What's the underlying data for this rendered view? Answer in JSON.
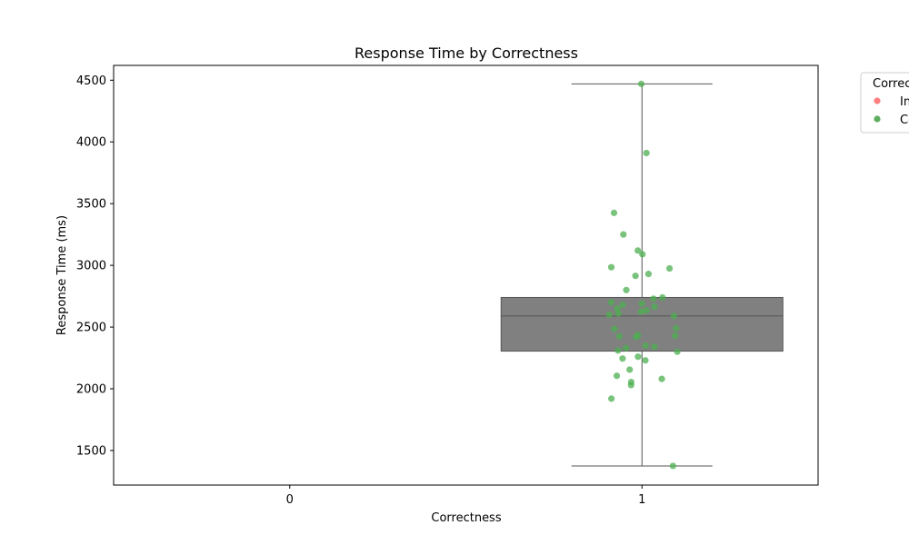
{
  "chart_data": {
    "type": "box",
    "title": "Response Time by Correctness",
    "xlabel": "Correctness",
    "ylabel": "Response Time (ms)",
    "categories": [
      "0",
      "1"
    ],
    "ylim": [
      1220,
      4620
    ],
    "yticks": [
      1500,
      2000,
      2500,
      3000,
      3500,
      4000,
      4500
    ],
    "grid": false,
    "legend": {
      "title": "Correctness",
      "placement": "outside-top-right",
      "entries": [
        {
          "label": "Incorrect",
          "color": "#ff7f7f"
        },
        {
          "label": "Correct",
          "color": "#5fae5f"
        }
      ]
    },
    "box": {
      "category": "1",
      "whisker_low": 1375,
      "q1": 2305,
      "median": 2590,
      "q3": 2740,
      "whisker_high": 4470,
      "color": "#808080"
    },
    "points": {
      "series": "Correct",
      "category": "1",
      "color": "#4caf50",
      "values": [
        4470,
        3910,
        3425,
        3250,
        3120,
        3090,
        2985,
        2975,
        2930,
        2915,
        2800,
        2740,
        2730,
        2700,
        2690,
        2680,
        2665,
        2650,
        2635,
        2625,
        2610,
        2600,
        2590,
        2490,
        2485,
        2435,
        2430,
        2425,
        2420,
        2350,
        2340,
        2330,
        2310,
        2300,
        2260,
        2245,
        2230,
        2155,
        2105,
        2080,
        2055,
        2030,
        1920,
        1375
      ]
    }
  }
}
